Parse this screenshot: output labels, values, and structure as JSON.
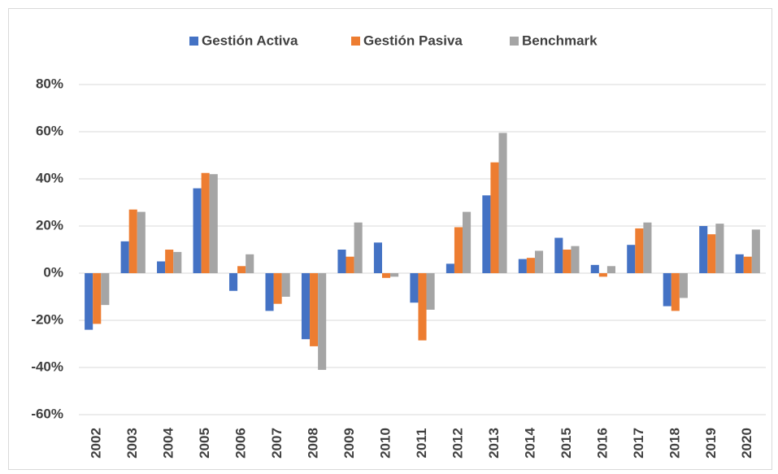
{
  "chart_data": {
    "type": "bar",
    "categories": [
      "2002",
      "2003",
      "2004",
      "2005",
      "2006",
      "2007",
      "2008",
      "2009",
      "2010",
      "2011",
      "2012",
      "2013",
      "2014",
      "2015",
      "2016",
      "2017",
      "2018",
      "2019",
      "2020"
    ],
    "series": [
      {
        "name": "Gestión Activa",
        "color": "#4472c4",
        "values": [
          -24,
          13.5,
          5,
          36,
          -7.5,
          -16,
          -28,
          10,
          13,
          -12.5,
          4,
          33,
          6,
          15,
          3.5,
          12,
          -14,
          20,
          8
        ]
      },
      {
        "name": "Gestión Pasiva",
        "color": "#ed7d31",
        "values": [
          -21.5,
          27,
          10,
          42.5,
          3,
          -13,
          -31,
          7,
          -2,
          -28.5,
          19.5,
          47,
          6.5,
          10,
          -1.5,
          19,
          -16,
          16.5,
          7
        ]
      },
      {
        "name": "Benchmark",
        "color": "#a5a5a5",
        "values": [
          -13.5,
          26,
          9,
          42,
          8,
          -10,
          -41,
          21.5,
          -1.5,
          -15.5,
          26,
          59.5,
          9.5,
          11.5,
          3,
          21.5,
          -10.5,
          21,
          18.5
        ]
      }
    ],
    "ylim": [
      -60,
      80
    ],
    "yticks": [
      {
        "value": -60,
        "label": "-60%"
      },
      {
        "value": -40,
        "label": "-40%"
      },
      {
        "value": -20,
        "label": "-20%"
      },
      {
        "value": 0,
        "label": "0%"
      },
      {
        "value": 20,
        "label": "20%"
      },
      {
        "value": 40,
        "label": "40%"
      },
      {
        "value": 60,
        "label": "60%"
      },
      {
        "value": 80,
        "label": "80%"
      }
    ],
    "grid": true,
    "legend": "top"
  }
}
